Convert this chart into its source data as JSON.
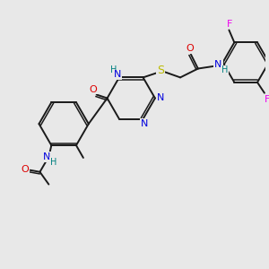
{
  "bg_color": "#e8e8e8",
  "bond_color": "#1a1a1a",
  "atom_colors": {
    "N": "#0000dd",
    "O": "#dd0000",
    "S": "#bbbb00",
    "F": "#ee00ee",
    "H": "#008080",
    "C": "#1a1a1a"
  },
  "figsize": [
    3.0,
    3.0
  ],
  "dpi": 100
}
